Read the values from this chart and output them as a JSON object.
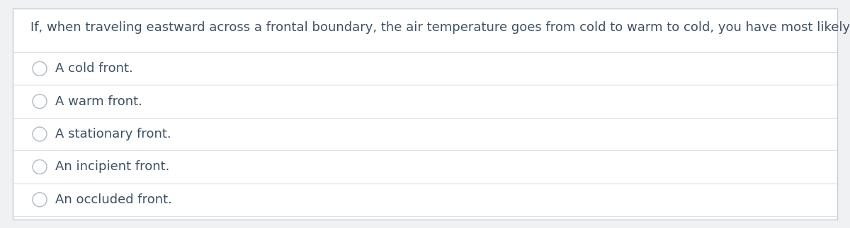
{
  "question": "If, when traveling eastward across a frontal boundary, the air temperature goes from cold to warm to cold, you have most likely crossed:",
  "options": [
    "A cold front.",
    "A warm front.",
    "A stationary front.",
    "An incipient front.",
    "An occluded front."
  ],
  "bg_color": "#f0f1f2",
  "panel_color": "#ffffff",
  "border_color": "#c8cdd2",
  "text_color": "#3d5166",
  "question_fontsize": 13,
  "option_fontsize": 13,
  "circle_edge_color": "#b0b8c0",
  "line_color": "#d8dde2",
  "fig_width": 12.0,
  "fig_height": 3.23
}
